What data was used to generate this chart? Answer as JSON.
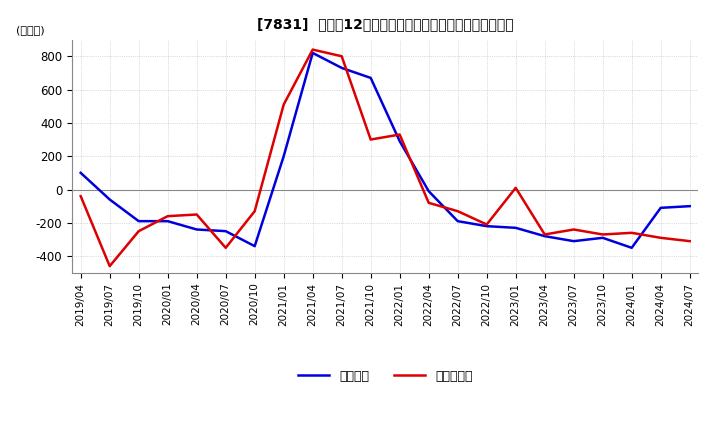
{
  "title": "[7831]  利益だ12か月移動合計の対前年同期増減額の推移",
  "ylabel": "(百万円)",
  "ylim": [
    -500,
    900
  ],
  "yticks": [
    -400,
    -200,
    0,
    200,
    400,
    600,
    800
  ],
  "legend_labels": [
    "経常利益",
    "当期純利益"
  ],
  "line_colors": [
    "#0000dd",
    "#dd0000"
  ],
  "background_color": "#ffffff",
  "grid_color": "#bbbbbb",
  "dates": [
    "2019/04",
    "2019/07",
    "2019/10",
    "2020/01",
    "2020/04",
    "2020/07",
    "2020/10",
    "2021/01",
    "2021/04",
    "2021/07",
    "2021/10",
    "2022/01",
    "2022/04",
    "2022/07",
    "2022/10",
    "2023/01",
    "2023/04",
    "2023/07",
    "2023/10",
    "2024/01",
    "2024/04",
    "2024/07"
  ],
  "series_keijo": [
    100,
    -60,
    -190,
    -190,
    -240,
    -250,
    -340,
    200,
    820,
    730,
    670,
    290,
    -10,
    -190,
    -220,
    -230,
    -280,
    -310,
    -290,
    -350,
    -110,
    -100
  ],
  "series_touki": [
    -40,
    -460,
    -250,
    -160,
    -150,
    -350,
    -130,
    510,
    840,
    800,
    300,
    330,
    -80,
    -130,
    -210,
    10,
    -270,
    -240,
    -270,
    -260,
    -290,
    -310
  ]
}
